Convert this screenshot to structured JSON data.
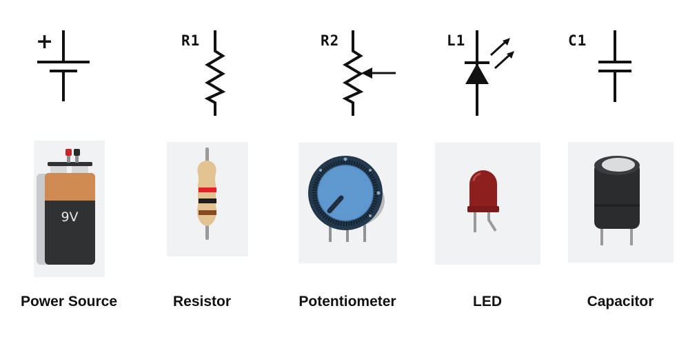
{
  "components": [
    {
      "name": "Power Source",
      "ref": "",
      "symbol": "battery",
      "plus_sign": "+",
      "battery_label": "9V"
    },
    {
      "name": "Resistor",
      "ref": "R1",
      "symbol": "resistor"
    },
    {
      "name": "Potentiometer",
      "ref": "R2",
      "symbol": "potentiometer"
    },
    {
      "name": "LED",
      "ref": "L1",
      "symbol": "led"
    },
    {
      "name": "Capacitor",
      "ref": "C1",
      "symbol": "capacitor"
    }
  ],
  "colors": {
    "symbol_stroke": "#111111",
    "tile_background": "#f1f2f4",
    "battery_top": "#cf8b52",
    "battery_body": "#2f3133",
    "resistor_body": "#e2c391",
    "band_red": "#e5202a",
    "band_black": "#1d1d1d",
    "band_brown": "#8a4a1f",
    "knob_blue": "#5f97cf",
    "knob_ring": "#24384c",
    "led_red": "#8e1f1f",
    "capacitor_body": "#2a2c2e"
  }
}
